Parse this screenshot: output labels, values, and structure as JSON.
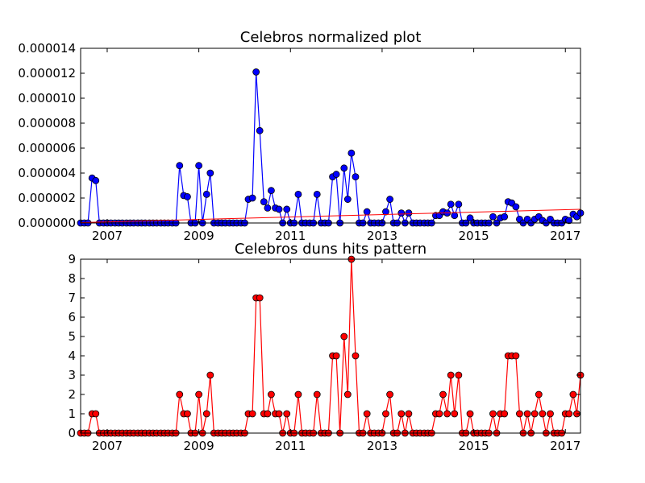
{
  "chart_data": [
    {
      "type": "line",
      "title": "Celebros normalized plot",
      "xlabel": "",
      "ylabel": "",
      "x_tick_labels": [
        "2007",
        "2009",
        "2011",
        "2013",
        "2015",
        "2017"
      ],
      "y_tick_labels": [
        "0.000000",
        "0.000002",
        "0.000004",
        "0.000006",
        "0.000008",
        "0.000010",
        "0.000012",
        "0.000014"
      ],
      "xlim": [
        2006.42,
        2017.33
      ],
      "ylim": [
        0,
        1.4e-05
      ],
      "grid": false,
      "x": [
        2006.42,
        2006.5,
        2006.58,
        2006.67,
        2006.75,
        2006.83,
        2006.92,
        2007.0,
        2007.08,
        2007.17,
        2007.25,
        2007.33,
        2007.42,
        2007.5,
        2007.58,
        2007.67,
        2007.75,
        2007.83,
        2007.92,
        2008.0,
        2008.08,
        2008.17,
        2008.25,
        2008.33,
        2008.42,
        2008.5,
        2008.58,
        2008.67,
        2008.75,
        2008.83,
        2008.92,
        2009.0,
        2009.08,
        2009.17,
        2009.25,
        2009.33,
        2009.42,
        2009.5,
        2009.58,
        2009.67,
        2009.75,
        2009.83,
        2009.92,
        2010.0,
        2010.08,
        2010.17,
        2010.25,
        2010.33,
        2010.42,
        2010.5,
        2010.58,
        2010.67,
        2010.75,
        2010.83,
        2010.92,
        2011.0,
        2011.08,
        2011.17,
        2011.25,
        2011.33,
        2011.42,
        2011.5,
        2011.58,
        2011.67,
        2011.75,
        2011.83,
        2011.92,
        2012.0,
        2012.08,
        2012.17,
        2012.25,
        2012.33,
        2012.42,
        2012.5,
        2012.58,
        2012.67,
        2012.75,
        2012.83,
        2012.92,
        2013.0,
        2013.08,
        2013.17,
        2013.25,
        2013.33,
        2013.42,
        2013.5,
        2013.58,
        2013.67,
        2013.75,
        2013.83,
        2013.92,
        2014.0,
        2014.08,
        2014.17,
        2014.25,
        2014.33,
        2014.42,
        2014.5,
        2014.58,
        2014.67,
        2014.75,
        2014.83,
        2014.92,
        2015.0,
        2015.08,
        2015.17,
        2015.25,
        2015.33,
        2015.42,
        2015.5,
        2015.58,
        2015.67,
        2015.75,
        2015.83,
        2015.92,
        2016.0,
        2016.08,
        2016.17,
        2016.25,
        2016.33,
        2016.42,
        2016.5,
        2016.58,
        2016.67,
        2016.75,
        2016.83,
        2016.92,
        2017.0,
        2017.08,
        2017.17,
        2017.25,
        2017.33
      ],
      "series": [
        {
          "color": "#0000ff",
          "marker_color": "#0000ff",
          "values": [
            0,
            0,
            0,
            3.6e-06,
            3.4e-06,
            0,
            0,
            0,
            0,
            0,
            0,
            0,
            0,
            0,
            0,
            0,
            0,
            0,
            0,
            0,
            0,
            0,
            0,
            0,
            0,
            0,
            4.6e-06,
            2.2e-06,
            2.1e-06,
            0,
            0,
            4.6e-06,
            0,
            2.3e-06,
            4e-06,
            0,
            0,
            0,
            0,
            0,
            0,
            0,
            0,
            0,
            1.9e-06,
            2e-06,
            1.21e-05,
            7.4e-06,
            1.7e-06,
            1.2e-06,
            2.6e-06,
            1.2e-06,
            1.1e-06,
            0,
            1.1e-06,
            0,
            0,
            2.3e-06,
            0,
            0,
            0,
            0,
            2.3e-06,
            0,
            0,
            0,
            3.7e-06,
            3.9e-06,
            0,
            4.4e-06,
            1.9e-06,
            5.6e-06,
            3.7e-06,
            0,
            0,
            9e-07,
            0,
            0,
            0,
            0,
            9e-07,
            1.9e-06,
            0,
            0,
            8e-07,
            0,
            8e-07,
            0,
            0,
            0,
            0,
            0,
            0,
            6e-07,
            6e-07,
            9e-07,
            8e-07,
            1.5e-06,
            6e-07,
            1.5e-06,
            0,
            0,
            4e-07,
            0,
            0,
            0,
            0,
            0,
            5e-07,
            0,
            4e-07,
            5e-07,
            1.7e-06,
            1.6e-06,
            1.3e-06,
            3e-07,
            0,
            3e-07,
            0,
            3e-07,
            5e-07,
            2e-07,
            0,
            3e-07,
            0,
            0,
            0,
            3e-07,
            2e-07,
            7e-07,
            5e-07,
            8e-07
          ]
        },
        {
          "type": "trendline",
          "color": "#ff0000",
          "x": [
            2006.42,
            2017.33
          ],
          "values": [
            3e-08,
            1.1e-06
          ]
        }
      ]
    },
    {
      "type": "line",
      "title": "Celebros duns hits pattern",
      "xlabel": "",
      "ylabel": "",
      "x_tick_labels": [
        "2007",
        "2009",
        "2011",
        "2013",
        "2015",
        "2017"
      ],
      "y_tick_labels": [
        "0",
        "1",
        "2",
        "3",
        "4",
        "5",
        "6",
        "7",
        "8",
        "9"
      ],
      "xlim": [
        2006.42,
        2017.33
      ],
      "ylim": [
        0,
        9
      ],
      "grid": false,
      "series": [
        {
          "color": "#ff0000",
          "marker_color": "#ff0000",
          "values": [
            0,
            0,
            0,
            1,
            1,
            0,
            0,
            0,
            0,
            0,
            0,
            0,
            0,
            0,
            0,
            0,
            0,
            0,
            0,
            0,
            0,
            0,
            0,
            0,
            0,
            0,
            2,
            1,
            1,
            0,
            0,
            2,
            0,
            1,
            3,
            0,
            0,
            0,
            0,
            0,
            0,
            0,
            0,
            0,
            1,
            1,
            7,
            7,
            1,
            1,
            2,
            1,
            1,
            0,
            1,
            0,
            0,
            2,
            0,
            0,
            0,
            0,
            2,
            0,
            0,
            0,
            4,
            4,
            0,
            5,
            2,
            9,
            4,
            0,
            0,
            1,
            0,
            0,
            0,
            0,
            1,
            2,
            0,
            0,
            1,
            0,
            1,
            0,
            0,
            0,
            0,
            0,
            0,
            1,
            1,
            2,
            1,
            3,
            1,
            3,
            0,
            0,
            1,
            0,
            0,
            0,
            0,
            0,
            1,
            0,
            1,
            1,
            4,
            4,
            4,
            1,
            0,
            1,
            0,
            1,
            2,
            1,
            0,
            1,
            0,
            0,
            0,
            1,
            1,
            2,
            1,
            3
          ]
        }
      ]
    }
  ]
}
